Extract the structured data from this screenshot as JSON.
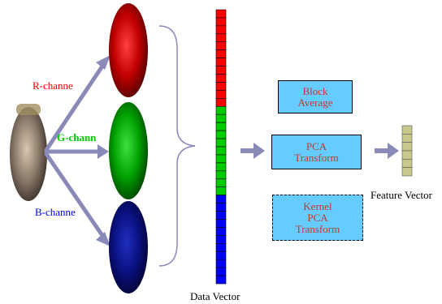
{
  "channels": {
    "r_label": "R-channe",
    "g_label": "G-chann",
    "b_label": "B-channe"
  },
  "boxes": {
    "block_average": "Block\nAverage",
    "pca_transform": "PCA\nTransform",
    "kernel_pca_transform": "Kernel\nPCA\nTransform"
  },
  "labels": {
    "data_vector": "Data Vector",
    "feature_vector": "Feature Vector"
  },
  "data_vector": {
    "segments": [
      {
        "color": "#ff0000",
        "count": 12
      },
      {
        "color": "#00cc00",
        "count": 11
      },
      {
        "color": "#0000ff",
        "count": 11
      }
    ]
  },
  "feature_vector": {
    "cells": 6,
    "color": "#c8c88c"
  },
  "colors": {
    "arrow": "#8a8ab8",
    "box_fill": "#66ccff",
    "box_text": "#c0392b",
    "r_text": "#ff0000",
    "g_text": "#00cc00",
    "b_text": "#0000ff"
  }
}
